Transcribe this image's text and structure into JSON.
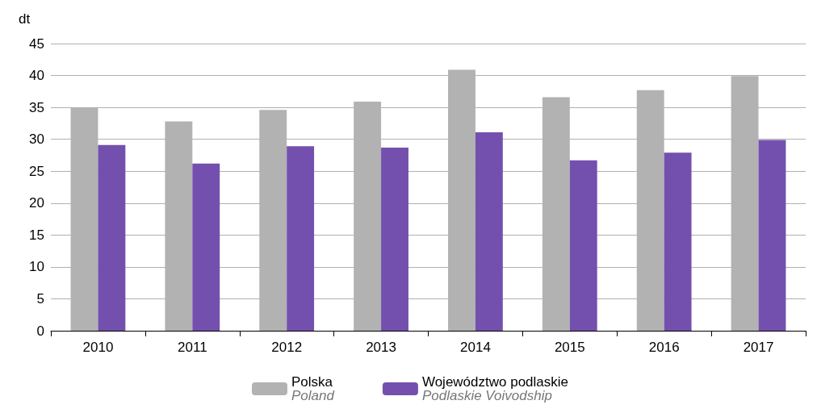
{
  "chart_data": {
    "type": "bar",
    "ylabel": "dt",
    "categories": [
      "2010",
      "2011",
      "2012",
      "2013",
      "2014",
      "2015",
      "2016",
      "2017"
    ],
    "series": [
      {
        "name": "Polska\nPoland",
        "color": "#b2b2b2",
        "values": [
          35.0,
          32.8,
          34.6,
          35.9,
          40.9,
          36.6,
          37.7,
          39.9
        ]
      },
      {
        "name": "Województwo podlaskie\nPodlaskie Voivodship",
        "color": "#7450ae",
        "values": [
          29.1,
          26.2,
          28.9,
          28.7,
          31.1,
          26.7,
          27.9,
          29.9
        ]
      }
    ],
    "ylim": [
      0,
      45
    ],
    "yticks": [
      0,
      5,
      10,
      15,
      20,
      25,
      30,
      35,
      40,
      45
    ],
    "grid": "y",
    "legend": "bottom"
  }
}
